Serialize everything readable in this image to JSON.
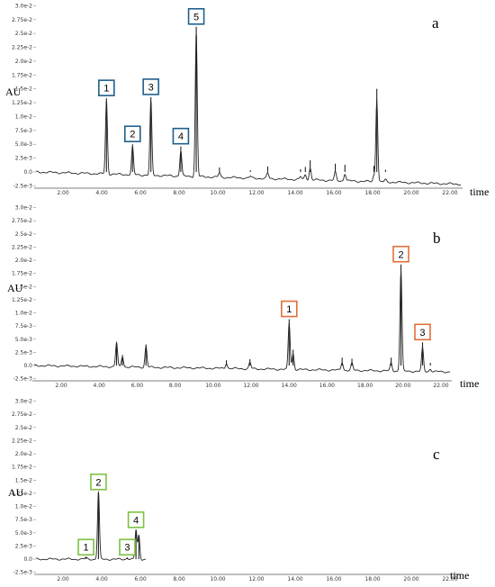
{
  "chart_data": [
    {
      "type": "line",
      "panel_label": "a",
      "ylabel": "AU",
      "xlabel": "time",
      "x_ticks": [
        "2.00",
        "4.00",
        "6.00",
        "8.00",
        "10.00",
        "12.00",
        "14.00",
        "16.00",
        "18.00",
        "20.00",
        "22.00"
      ],
      "y_ticks": [
        "-2.5e-3",
        "0.0",
        "2.5e-3",
        "5.0e-3",
        "7.5e-3",
        "1.0e-2",
        "1.25e-2",
        "1.5e-2",
        "1.75e-2",
        "2.0e-2",
        "2.25e-2",
        "2.5e-2",
        "2.75e-2",
        "3.0e-2"
      ],
      "xlim": [
        2.0,
        24.0
      ],
      "ylim": [
        -0.0025,
        0.03
      ],
      "label_color": "#1f5f8b",
      "peaks": [
        {
          "label": "1",
          "x": 5.65,
          "y": 0.0133
        },
        {
          "label": "2",
          "x": 7.0,
          "y": 0.005
        },
        {
          "label": "3",
          "x": 7.95,
          "y": 0.0135
        },
        {
          "label": "4",
          "x": 9.5,
          "y": 0.0046
        },
        {
          "label": "5",
          "x": 10.3,
          "y": 0.0262
        }
      ],
      "minor_peaks": [
        {
          "x": 11.5,
          "y": 0.0008
        },
        {
          "x": 13.1,
          "y": 0.0003
        },
        {
          "x": 14.0,
          "y": 0.001
        },
        {
          "x": 15.7,
          "y": 0.0005
        },
        {
          "x": 15.95,
          "y": 0.0009
        },
        {
          "x": 16.2,
          "y": 0.0021
        },
        {
          "x": 17.5,
          "y": 0.0015
        },
        {
          "x": 18.0,
          "y": 0.0013
        },
        {
          "x": 19.5,
          "y": 0.0011
        },
        {
          "x": 19.65,
          "y": 0.015
        },
        {
          "x": 20.1,
          "y": 0.0004
        }
      ],
      "baseline_end": -0.0022
    },
    {
      "type": "line",
      "panel_label": "b",
      "ylabel": "AU",
      "xlabel": "time",
      "x_ticks": [
        "2.00",
        "4.00",
        "6.00",
        "8.00",
        "10.00",
        "12.00",
        "14.00",
        "16.00",
        "18.00",
        "20.00",
        "22.00"
      ],
      "y_ticks": [
        "-2.5e-3",
        "0.0",
        "2.5e-3",
        "5.0e-3",
        "7.5e-3",
        "1.0e-2",
        "1.25e-2",
        "1.5e-2",
        "1.75e-2",
        "2.0e-2",
        "2.25e-2",
        "2.5e-2",
        "2.75e-2",
        "3.0e-2"
      ],
      "xlim": [
        2.0,
        23.2
      ],
      "ylim": [
        -0.0025,
        0.03
      ],
      "label_color": "#e0703a",
      "peaks": [
        {
          "label": "1",
          "x": 15.0,
          "y": 0.0088
        },
        {
          "label": "2",
          "x": 20.7,
          "y": 0.0192
        },
        {
          "label": "3",
          "x": 21.8,
          "y": 0.0044
        }
      ],
      "minor_peaks": [
        {
          "x": 6.2,
          "y": 0.0045
        },
        {
          "x": 6.5,
          "y": 0.002
        },
        {
          "x": 7.7,
          "y": 0.004
        },
        {
          "x": 11.8,
          "y": 0.001
        },
        {
          "x": 13.0,
          "y": 0.0012
        },
        {
          "x": 15.2,
          "y": 0.003
        },
        {
          "x": 17.7,
          "y": 0.0015
        },
        {
          "x": 18.2,
          "y": 0.0013
        },
        {
          "x": 20.2,
          "y": 0.0015
        },
        {
          "x": 22.2,
          "y": 0.0005
        }
      ],
      "baseline_end": -0.0012
    },
    {
      "type": "line",
      "panel_label": "c",
      "ylabel": "AU",
      "xlabel": "time",
      "x_ticks": [
        "2.00",
        "4.00",
        "6.00",
        "8.00",
        "10.00",
        "12.00",
        "14.00",
        "16.00",
        "18.00",
        "20.00",
        "22.00"
      ],
      "y_ticks": [
        "-2.5e-3",
        "0.0",
        "2.5e-3",
        "5.0e-3",
        "7.5e-3",
        "1.0e-2",
        "1.25e-2",
        "1.5e-2",
        "1.75e-2",
        "2.0e-2",
        "2.25e-2",
        "2.5e-2",
        "2.75e-2",
        "3.0e-2"
      ],
      "xlim": [
        2.0,
        24.0
      ],
      "ylim": [
        -0.0025,
        0.03
      ],
      "trace_end": 7.7,
      "label_color": "#7cc242",
      "peaks": [
        {
          "label": "1",
          "x": 4.6,
          "y": 0.0003
        },
        {
          "label": "2",
          "x": 5.25,
          "y": 0.0127
        },
        {
          "label": "3",
          "x": 6.75,
          "y": 0.0003
        },
        {
          "label": "4",
          "x": 7.2,
          "y": 0.0055
        }
      ],
      "minor_peaks": [
        {
          "x": 7.35,
          "y": 0.0045
        }
      ],
      "baseline_end": -0.0002
    }
  ]
}
